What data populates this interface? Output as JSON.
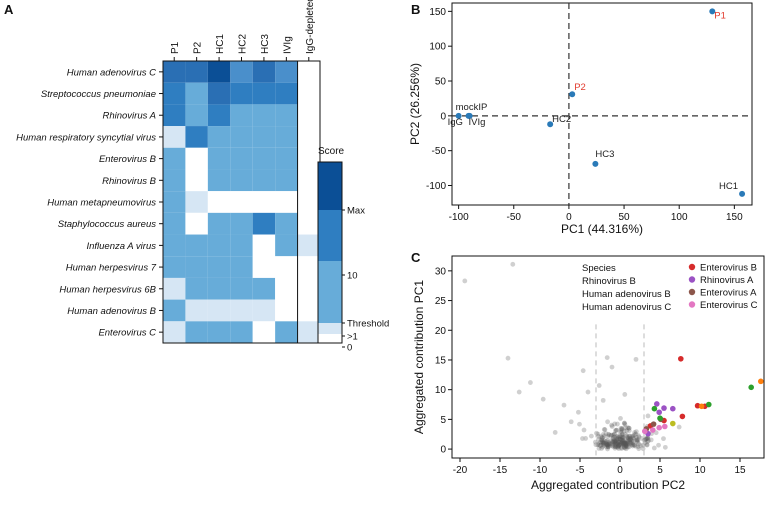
{
  "panel_labels": {
    "a": "A",
    "b": "B",
    "c": "C"
  },
  "chart_data": [
    {
      "type": "heatmap",
      "panel": "A",
      "columns": [
        "P1",
        "P2",
        "HC1",
        "HC2",
        "HC3",
        "IVIg",
        "IgG-depleted"
      ],
      "rows": [
        "Human adenovirus C",
        "Streptococcus pneumoniae",
        "Rhinovirus A",
        "Human respiratory syncytial virus",
        "Enterovirus B",
        "Rhinovirus B",
        "Human metapneumovirus",
        "Staphylococcus aureus",
        "Influenza A virus",
        "Human herpesvirus 7",
        "Human herpesvirus 6B",
        "Human adenovirus B",
        "Enterovirus C"
      ],
      "levels": [
        [
          5,
          5,
          6,
          4,
          5,
          4,
          0
        ],
        [
          3,
          2,
          5,
          3,
          3,
          3,
          0
        ],
        [
          3,
          2,
          3,
          2,
          2,
          2,
          0
        ],
        [
          1,
          3,
          2,
          2,
          2,
          2,
          0
        ],
        [
          2,
          0,
          2,
          2,
          2,
          2,
          0
        ],
        [
          2,
          0,
          2,
          2,
          2,
          2,
          0
        ],
        [
          2,
          1,
          0,
          0,
          0,
          0,
          0
        ],
        [
          2,
          0,
          2,
          2,
          3,
          2,
          0
        ],
        [
          2,
          2,
          2,
          2,
          0,
          2,
          1
        ],
        [
          2,
          2,
          2,
          2,
          0,
          0,
          0
        ],
        [
          1,
          2,
          2,
          2,
          2,
          0,
          0
        ],
        [
          2,
          1,
          1,
          1,
          1,
          0,
          0
        ],
        [
          1,
          2,
          2,
          2,
          0,
          2,
          1
        ]
      ],
      "colorbar": {
        "title": "Score",
        "labels": [
          "Max",
          "10",
          "Threshold",
          ">1",
          "0"
        ],
        "colors": [
          "#0b4f96",
          "#2f7ec1",
          "#67acd9",
          "#d6e6f4",
          "#ffffff"
        ]
      }
    },
    {
      "type": "scatter",
      "panel": "B",
      "xlabel": "PC1 (44.316%)",
      "ylabel": "PC2 (26.256%)",
      "xlim": [
        -106,
        166
      ],
      "ylim": [
        -128,
        162
      ],
      "xticks": [
        -100,
        -50,
        0,
        50,
        100,
        150
      ],
      "yticks": [
        -100,
        -50,
        0,
        50,
        100,
        150
      ],
      "points": [
        {
          "label": "P1",
          "x": 130,
          "y": 150,
          "label_color": "#e23b2e"
        },
        {
          "label": "P2",
          "x": 3,
          "y": 31,
          "label_color": "#e23b2e"
        },
        {
          "label": "HC1",
          "x": 157,
          "y": -112,
          "label_color": "#222222"
        },
        {
          "label": "HC2",
          "x": -17,
          "y": -12,
          "label_color": "#222222"
        },
        {
          "label": "HC3",
          "x": 24,
          "y": -69,
          "label_color": "#222222"
        },
        {
          "label": "mockIP",
          "x": -90,
          "y": 0,
          "label_color": "#222222"
        },
        {
          "label": "IgG",
          "x": -100,
          "y": 0,
          "label_color": "#222222"
        },
        {
          "label": "IVIg",
          "x": -91,
          "y": 0,
          "label_color": "#222222"
        }
      ],
      "point_color": "#2a7ab8"
    },
    {
      "type": "scatter",
      "panel": "C",
      "xlabel": "Aggregated contribution PC2",
      "ylabel": "Aggregated contribution PC1",
      "xlim": [
        -21,
        18
      ],
      "ylim": [
        -1.5,
        32.5
      ],
      "xticks": [
        -20,
        -15,
        -10,
        -5,
        0,
        5,
        10,
        15
      ],
      "yticks": [
        0,
        5,
        10,
        15,
        20,
        25,
        30
      ],
      "thresholds_x": [
        -3,
        3
      ],
      "species_legend": {
        "title": "Species",
        "items": [
          "Rhinovirus B",
          "Human adenovirus B",
          "Human adenovirus C"
        ]
      },
      "series": [
        {
          "name": "Enterovirus B",
          "color": "#d62b2b",
          "points": [
            [
              7.6,
              15.2
            ],
            [
              9.7,
              7.3
            ],
            [
              10.6,
              7.2
            ],
            [
              7.8,
              5.5
            ],
            [
              5.5,
              4.8
            ],
            [
              3.8,
              3.9
            ]
          ]
        },
        {
          "name": "Rhinovirus A",
          "color": "#9b52c4",
          "points": [
            [
              4.6,
              7.6
            ],
            [
              5.5,
              6.9
            ],
            [
              4.9,
              6.2
            ],
            [
              6.6,
              6.8
            ],
            [
              3.5,
              2.6
            ]
          ]
        },
        {
          "name": "Enterovirus A",
          "color": "#8c564b",
          "points": [
            [
              4.2,
              4.2
            ],
            [
              3.3,
              3.4
            ],
            [
              5.1,
              5.0
            ]
          ]
        },
        {
          "name": "Enterovirus C",
          "color": "#e377c2",
          "points": [
            [
              4.9,
              3.6
            ],
            [
              5.6,
              3.8
            ],
            [
              4.1,
              3.2
            ],
            [
              3.1,
              3.0
            ]
          ]
        },
        {
          "name": "",
          "color": "#2ca02c",
          "points": [
            [
              16.4,
              10.4
            ],
            [
              11.1,
              7.5
            ],
            [
              4.3,
              6.8
            ],
            [
              5.0,
              5.2
            ]
          ]
        },
        {
          "name": "",
          "color": "#ff7f0e",
          "points": [
            [
              17.6,
              11.4
            ],
            [
              10.2,
              7.2
            ]
          ]
        },
        {
          "name": "",
          "color": "#bcbd22",
          "points": [
            [
              6.6,
              4.3
            ]
          ]
        },
        {
          "name": "",
          "color": "#b0b0b0",
          "points": [
            [
              -19.4,
              28.3
            ],
            [
              -13.4,
              31.1
            ],
            [
              -14.0,
              15.3
            ],
            [
              -11.2,
              11.2
            ],
            [
              -12.6,
              9.6
            ],
            [
              -9.6,
              8.4
            ],
            [
              -1.6,
              15.4
            ],
            [
              -1.0,
              13.8
            ],
            [
              -4.6,
              13.2
            ],
            [
              -7.0,
              7.4
            ],
            [
              -5.2,
              6.2
            ],
            [
              -6.1,
              4.6
            ],
            [
              -4.0,
              9.6
            ],
            [
              -2.1,
              8.2
            ],
            [
              2.0,
              15.1
            ],
            [
              -2.6,
              10.7
            ],
            [
              -8.1,
              2.8
            ],
            [
              -4.3,
              1.8
            ],
            [
              0.6,
              9.2
            ]
          ]
        }
      ]
    }
  ]
}
